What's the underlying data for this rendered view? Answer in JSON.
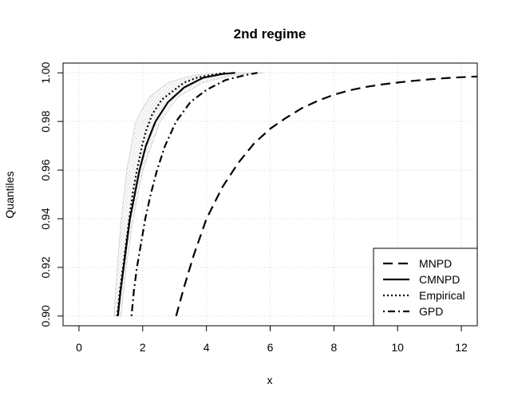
{
  "chart_data": {
    "type": "line",
    "title": "2nd regime",
    "xlabel": "x",
    "ylabel": "Quantiles",
    "xlim": [
      -0.5,
      12.5
    ],
    "ylim": [
      0.896,
      1.004
    ],
    "x_ticks": [
      0,
      2,
      4,
      6,
      8,
      10,
      12
    ],
    "x_tick_labels": [
      "0",
      "2",
      "4",
      "6",
      "8",
      "10",
      "12"
    ],
    "y_ticks": [
      0.9,
      0.92,
      0.94,
      0.96,
      0.98,
      1.0
    ],
    "y_tick_labels": [
      "0.90",
      "0.92",
      "0.94",
      "0.96",
      "0.98",
      "1.00"
    ],
    "grid": true,
    "legend_position": "bottom-right",
    "series": [
      {
        "name": "MNPD",
        "style": "dashed",
        "points": [
          [
            3.05,
            0.9
          ],
          [
            3.3,
            0.912
          ],
          [
            3.6,
            0.925
          ],
          [
            4.0,
            0.94
          ],
          [
            4.5,
            0.953
          ],
          [
            5.0,
            0.963
          ],
          [
            5.5,
            0.971
          ],
          [
            6.0,
            0.977
          ],
          [
            6.5,
            0.9815
          ],
          [
            7.0,
            0.9855
          ],
          [
            7.5,
            0.9885
          ],
          [
            8.0,
            0.991
          ],
          [
            8.5,
            0.9928
          ],
          [
            9.0,
            0.9942
          ],
          [
            9.5,
            0.9952
          ],
          [
            10.0,
            0.996
          ],
          [
            10.5,
            0.9967
          ],
          [
            11.0,
            0.9973
          ],
          [
            11.5,
            0.9978
          ],
          [
            12.0,
            0.9982
          ],
          [
            12.5,
            0.9985
          ]
        ]
      },
      {
        "name": "CMNPD",
        "style": "solid",
        "points": [
          [
            1.22,
            0.9
          ],
          [
            1.3,
            0.91
          ],
          [
            1.4,
            0.92
          ],
          [
            1.5,
            0.93
          ],
          [
            1.6,
            0.94
          ],
          [
            1.75,
            0.95
          ],
          [
            1.9,
            0.96
          ],
          [
            2.1,
            0.97
          ],
          [
            2.4,
            0.98
          ],
          [
            2.8,
            0.988
          ],
          [
            3.3,
            0.994
          ],
          [
            3.9,
            0.998
          ],
          [
            4.5,
            0.9995
          ],
          [
            4.9,
            1.0
          ]
        ]
      },
      {
        "name": "Empirical",
        "style": "dotted",
        "points": [
          [
            1.2,
            0.9
          ],
          [
            1.28,
            0.91
          ],
          [
            1.38,
            0.92
          ],
          [
            1.48,
            0.93
          ],
          [
            1.58,
            0.94
          ],
          [
            1.68,
            0.95
          ],
          [
            1.82,
            0.96
          ],
          [
            1.98,
            0.97
          ],
          [
            2.1,
            0.976
          ],
          [
            2.3,
            0.983
          ],
          [
            2.6,
            0.989
          ],
          [
            3.0,
            0.993
          ],
          [
            3.3,
            0.996
          ],
          [
            3.7,
            0.998
          ],
          [
            4.1,
            0.999
          ],
          [
            4.6,
            1.0
          ]
        ]
      },
      {
        "name": "GPD",
        "style": "dotdash",
        "points": [
          [
            1.65,
            0.9
          ],
          [
            1.72,
            0.91
          ],
          [
            1.82,
            0.92
          ],
          [
            1.95,
            0.93
          ],
          [
            2.08,
            0.94
          ],
          [
            2.25,
            0.95
          ],
          [
            2.45,
            0.96
          ],
          [
            2.7,
            0.97
          ],
          [
            3.05,
            0.98
          ],
          [
            3.5,
            0.988
          ],
          [
            4.0,
            0.993
          ],
          [
            4.6,
            0.997
          ],
          [
            5.2,
            0.999
          ],
          [
            5.6,
            1.0
          ]
        ]
      }
    ],
    "band": {
      "upper": [
        [
          1.1,
          0.9
        ],
        [
          1.2,
          0.92
        ],
        [
          1.33,
          0.94
        ],
        [
          1.5,
          0.96
        ],
        [
          1.78,
          0.98
        ],
        [
          2.2,
          0.99
        ],
        [
          2.8,
          0.996
        ],
        [
          3.6,
          0.999
        ],
        [
          4.6,
          1.0
        ]
      ],
      "lower": [
        [
          1.32,
          0.9
        ],
        [
          1.48,
          0.92
        ],
        [
          1.7,
          0.94
        ],
        [
          2.0,
          0.96
        ],
        [
          2.55,
          0.98
        ],
        [
          3.1,
          0.99
        ],
        [
          3.9,
          0.996
        ],
        [
          4.8,
          0.999
        ],
        [
          5.8,
          1.0
        ]
      ]
    }
  }
}
